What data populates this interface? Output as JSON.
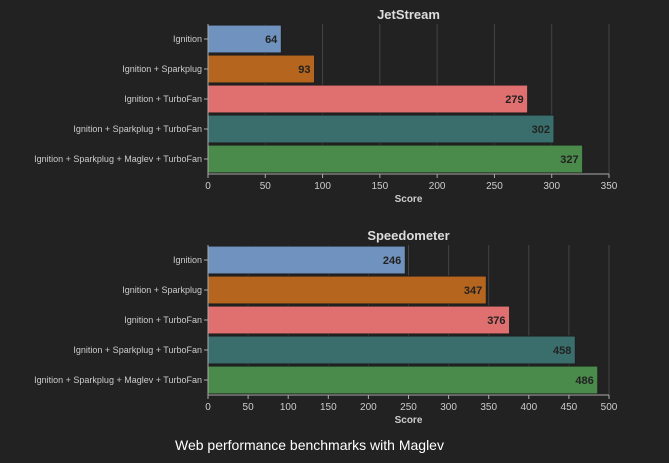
{
  "caption": "Web performance benchmarks with Maglev",
  "colors": {
    "background": "#222222",
    "grid": "#444444",
    "axis": "#aaaaaa",
    "text": "#cccccc",
    "title": "#dddddd",
    "bar_label": "#222222",
    "bar_stroke": "#1e1e1e"
  },
  "chart_data": [
    {
      "type": "bar",
      "orientation": "horizontal",
      "title": "JetStream",
      "xlabel": "Score",
      "ylabel": "",
      "categories": [
        "Ignition",
        "Ignition + Sparkplug",
        "Ignition + TurboFan",
        "Ignition + Sparkplug + TurboFan",
        "Ignition + Sparkplug + Maglev + TurboFan"
      ],
      "values": [
        64,
        93,
        279,
        302,
        327
      ],
      "bar_colors": [
        "#7092be",
        "#b5651d",
        "#e07070",
        "#3a6e6c",
        "#4a8a4a"
      ],
      "xlim": [
        0,
        350
      ],
      "xticks": [
        0,
        50,
        100,
        150,
        200,
        250,
        300,
        350
      ],
      "grid": true
    },
    {
      "type": "bar",
      "orientation": "horizontal",
      "title": "Speedometer",
      "xlabel": "Score",
      "ylabel": "",
      "categories": [
        "Ignition",
        "Ignition + Sparkplug",
        "Ignition + TurboFan",
        "Ignition + Sparkplug + TurboFan",
        "Ignition + Sparkplug + Maglev + TurboFan"
      ],
      "values": [
        246,
        347,
        376,
        458,
        486
      ],
      "bar_colors": [
        "#7092be",
        "#b5651d",
        "#e07070",
        "#3a6e6c",
        "#4a8a4a"
      ],
      "xlim": [
        0,
        500
      ],
      "xticks": [
        0,
        50,
        100,
        150,
        200,
        250,
        300,
        350,
        400,
        450,
        500
      ],
      "grid": true
    }
  ]
}
